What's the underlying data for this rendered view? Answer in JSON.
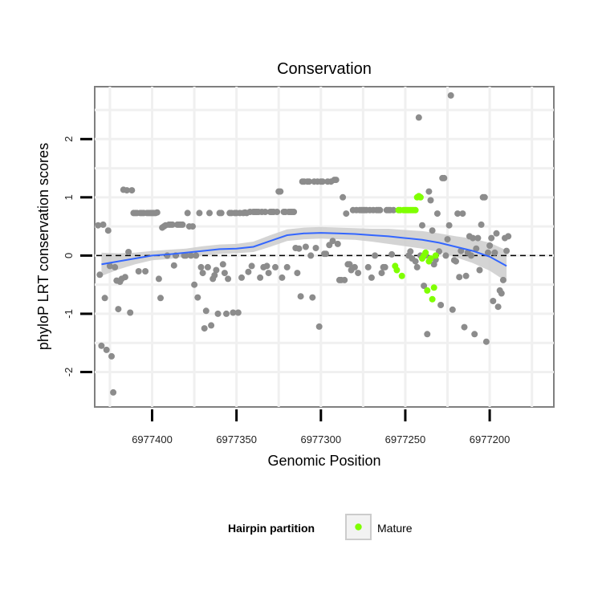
{
  "chart_data": {
    "type": "scatter",
    "title": "Conservation",
    "xlabel": "Genomic Position",
    "ylabel": "phyloP LRT conservation scores",
    "x_reversed": true,
    "xlim": [
      6977434,
      6977162
    ],
    "ylim": [
      -2.6,
      2.9
    ],
    "x_ticks": [
      6977400,
      6977350,
      6977300,
      6977250,
      6977200
    ],
    "x_tick_labels": [
      "6977400",
      "6977350",
      "6977300",
      "6977250",
      "6977200"
    ],
    "y_ticks": [
      -2,
      -1,
      0,
      1,
      2
    ],
    "y_tick_labels": [
      "-2",
      "-1",
      "0",
      "1",
      "2"
    ],
    "grid": true,
    "reference_line": {
      "y": 0,
      "style": "dashed",
      "color": "#000000"
    },
    "legend": {
      "title": "Hairpin partition",
      "placement": "bottom",
      "entries": [
        {
          "label": "Mature",
          "color": "#7fff00"
        }
      ]
    },
    "colors": {
      "other": "#8c8c8c",
      "mature": "#7fff00",
      "smooth": "#3366ff",
      "ribbon": "#cccccc",
      "panel_border": "#7f7f7f",
      "grid": "#f0f0f0"
    },
    "series": [
      {
        "color": "#8c8c8c",
        "points": [
          [
            6977432,
            0.52
          ],
          [
            6977431,
            -0.33
          ],
          [
            6977430,
            -1.55
          ],
          [
            6977429,
            0.53
          ],
          [
            6977428,
            -0.73
          ],
          [
            6977427,
            -1.62
          ],
          [
            6977426,
            0.43
          ],
          [
            6977425,
            -0.18
          ],
          [
            6977424,
            -1.73
          ],
          [
            6977423,
            -2.35
          ],
          [
            6977422,
            -0.2
          ],
          [
            6977421,
            -0.43
          ],
          [
            6977420,
            -0.92
          ],
          [
            6977419,
            -0.45
          ],
          [
            6977418,
            -0.4
          ],
          [
            6977417,
            1.13
          ],
          [
            6977416,
            -0.37
          ],
          [
            6977415,
            1.12
          ],
          [
            6977414,
            0.06
          ],
          [
            6977413,
            -0.98
          ],
          [
            6977412,
            1.12
          ],
          [
            6977411,
            0.73
          ],
          [
            6977410,
            0.73
          ],
          [
            6977409,
            0.73
          ],
          [
            6977408,
            -0.27
          ],
          [
            6977407,
            0.73
          ],
          [
            6977406,
            0.73
          ],
          [
            6977405,
            0.73
          ],
          [
            6977404,
            -0.27
          ],
          [
            6977403,
            0.73
          ],
          [
            6977402,
            0.73
          ],
          [
            6977401,
            0.73
          ],
          [
            6977400,
            0.73
          ],
          [
            6977399,
            0.73
          ],
          [
            6977398,
            0.73
          ],
          [
            6977397,
            0.74
          ],
          [
            6977396,
            -0.4
          ],
          [
            6977395,
            -0.73
          ],
          [
            6977394,
            0.48
          ],
          [
            6977393,
            0.5
          ],
          [
            6977392,
            0.52
          ],
          [
            6977391,
            0.0
          ],
          [
            6977390,
            0.53
          ],
          [
            6977389,
            0.53
          ],
          [
            6977388,
            0.53
          ],
          [
            6977387,
            -0.17
          ],
          [
            6977386,
            0.0
          ],
          [
            6977385,
            0.53
          ],
          [
            6977384,
            0.53
          ],
          [
            6977383,
            0.53
          ],
          [
            6977382,
            0.53
          ],
          [
            6977381,
            0.0
          ],
          [
            6977380,
            0.0
          ],
          [
            6977379,
            0.73
          ],
          [
            6977378,
            0.5
          ],
          [
            6977377,
            0.0
          ],
          [
            6977376,
            0.5
          ],
          [
            6977375,
            -0.5
          ],
          [
            6977374,
            0.0
          ],
          [
            6977373,
            -0.72
          ],
          [
            6977372,
            0.73
          ],
          [
            6977371,
            -0.2
          ],
          [
            6977370,
            -0.3
          ],
          [
            6977369,
            -1.25
          ],
          [
            6977368,
            -0.95
          ],
          [
            6977367,
            -0.2
          ],
          [
            6977366,
            0.73
          ],
          [
            6977365,
            -1.2
          ],
          [
            6977364,
            -0.4
          ],
          [
            6977363,
            -0.34
          ],
          [
            6977362,
            -0.25
          ],
          [
            6977361,
            -1.0
          ],
          [
            6977360,
            0.73
          ],
          [
            6977359,
            0.73
          ],
          [
            6977358,
            -0.15
          ],
          [
            6977357,
            -0.3
          ],
          [
            6977356,
            -1.0
          ],
          [
            6977355,
            -0.4
          ],
          [
            6977354,
            0.73
          ],
          [
            6977353,
            0.73
          ],
          [
            6977352,
            -0.98
          ],
          [
            6977351,
            0.73
          ],
          [
            6977350,
            0.73
          ],
          [
            6977349,
            -0.98
          ],
          [
            6977348,
            0.73
          ],
          [
            6977347,
            -0.38
          ],
          [
            6977346,
            0.73
          ],
          [
            6977345,
            0.74
          ],
          [
            6977344,
            0.73
          ],
          [
            6977343,
            -0.28
          ],
          [
            6977342,
            0.75
          ],
          [
            6977341,
            -0.18
          ],
          [
            6977340,
            0.75
          ],
          [
            6977339,
            0.75
          ],
          [
            6977338,
            0.75
          ],
          [
            6977337,
            0.75
          ],
          [
            6977336,
            -0.38
          ],
          [
            6977335,
            0.75
          ],
          [
            6977334,
            -0.2
          ],
          [
            6977333,
            0.75
          ],
          [
            6977332,
            -0.18
          ],
          [
            6977331,
            -0.3
          ],
          [
            6977330,
            0.75
          ],
          [
            6977329,
            0.75
          ],
          [
            6977328,
            0.75
          ],
          [
            6977327,
            -0.2
          ],
          [
            6977326,
            0.75
          ],
          [
            6977325,
            1.1
          ],
          [
            6977324,
            1.1
          ],
          [
            6977323,
            -0.38
          ],
          [
            6977322,
            0.75
          ],
          [
            6977321,
            0.75
          ],
          [
            6977320,
            -0.2
          ],
          [
            6977319,
            0.75
          ],
          [
            6977318,
            0.75
          ],
          [
            6977317,
            0.75
          ],
          [
            6977316,
            0.75
          ],
          [
            6977315,
            0.13
          ],
          [
            6977314,
            -0.3
          ],
          [
            6977313,
            0.12
          ],
          [
            6977312,
            -0.7
          ],
          [
            6977311,
            1.27
          ],
          [
            6977310,
            1.27
          ],
          [
            6977309,
            0.15
          ],
          [
            6977308,
            1.27
          ],
          [
            6977307,
            1.27
          ],
          [
            6977306,
            0.0
          ],
          [
            6977305,
            -0.72
          ],
          [
            6977304,
            1.27
          ],
          [
            6977303,
            0.13
          ],
          [
            6977302,
            1.27
          ],
          [
            6977301,
            -1.22
          ],
          [
            6977300,
            1.27
          ],
          [
            6977299,
            1.27
          ],
          [
            6977298,
            0.03
          ],
          [
            6977297,
            0.03
          ],
          [
            6977296,
            1.27
          ],
          [
            6977295,
            0.18
          ],
          [
            6977294,
            1.27
          ],
          [
            6977293,
            0.25
          ],
          [
            6977292,
            1.3
          ],
          [
            6977291,
            1.3
          ],
          [
            6977290,
            0.2
          ],
          [
            6977289,
            -0.42
          ],
          [
            6977288,
            -0.42
          ],
          [
            6977287,
            1.0
          ],
          [
            6977286,
            -0.42
          ],
          [
            6977285,
            0.72
          ],
          [
            6977284,
            -0.15
          ],
          [
            6977283,
            -0.15
          ],
          [
            6977282,
            -0.25
          ],
          [
            6977281,
            0.78
          ],
          [
            6977280,
            -0.2
          ],
          [
            6977279,
            0.78
          ],
          [
            6977278,
            -0.3
          ],
          [
            6977277,
            0.78
          ],
          [
            6977276,
            0.78
          ],
          [
            6977275,
            0.78
          ],
          [
            6977274,
            0.78
          ],
          [
            6977273,
            0.78
          ],
          [
            6977272,
            -0.2
          ],
          [
            6977271,
            0.78
          ],
          [
            6977270,
            -0.38
          ],
          [
            6977269,
            0.78
          ],
          [
            6977268,
            0.0
          ],
          [
            6977267,
            0.78
          ],
          [
            6977266,
            0.78
          ],
          [
            6977265,
            0.78
          ],
          [
            6977264,
            -0.3
          ],
          [
            6977263,
            -0.2
          ],
          [
            6977262,
            -0.2
          ],
          [
            6977261,
            0.78
          ],
          [
            6977260,
            0.78
          ],
          [
            6977259,
            0.78
          ],
          [
            6977258,
            0.02
          ],
          [
            6977257,
            0.78
          ],
          [
            6977248,
            0.0
          ],
          [
            6977247,
            0.07
          ],
          [
            6977246,
            -0.05
          ],
          [
            6977244,
            -0.1
          ],
          [
            6977243,
            -0.2
          ],
          [
            6977242,
            2.37
          ],
          [
            6977241,
            0.0
          ],
          [
            6977240,
            0.52
          ],
          [
            6977239,
            -0.52
          ],
          [
            6977238,
            0.0
          ],
          [
            6977237,
            -1.35
          ],
          [
            6977236,
            1.1
          ],
          [
            6977235,
            0.95
          ],
          [
            6977234,
            0.43
          ],
          [
            6977233,
            -0.15
          ],
          [
            6977232,
            -0.07
          ],
          [
            6977231,
            0.72
          ],
          [
            6977230,
            0.07
          ],
          [
            6977229,
            -0.85
          ],
          [
            6977228,
            1.33
          ],
          [
            6977227,
            1.33
          ],
          [
            6977226,
            0.0
          ],
          [
            6977225,
            0.28
          ],
          [
            6977224,
            0.52
          ],
          [
            6977223,
            2.75
          ],
          [
            6977222,
            -0.93
          ],
          [
            6977221,
            -0.08
          ],
          [
            6977220,
            -0.1
          ],
          [
            6977219,
            0.72
          ],
          [
            6977218,
            -0.37
          ],
          [
            6977217,
            0.08
          ],
          [
            6977216,
            0.72
          ],
          [
            6977215,
            -1.23
          ],
          [
            6977214,
            -0.35
          ],
          [
            6977213,
            0.05
          ],
          [
            6977212,
            0.33
          ],
          [
            6977211,
            0.0
          ],
          [
            6977210,
            0.3
          ],
          [
            6977209,
            -1.35
          ],
          [
            6977208,
            0.12
          ],
          [
            6977207,
            0.3
          ],
          [
            6977206,
            -0.25
          ],
          [
            6977205,
            0.53
          ],
          [
            6977204,
            1.0
          ],
          [
            6977203,
            1.0
          ],
          [
            6977202,
            -1.48
          ],
          [
            6977201,
            0.05
          ],
          [
            6977200,
            0.17
          ],
          [
            6977199,
            0.3
          ],
          [
            6977198,
            -0.78
          ],
          [
            6977197,
            0.05
          ],
          [
            6977196,
            0.38
          ],
          [
            6977195,
            -0.88
          ],
          [
            6977194,
            -0.6
          ],
          [
            6977193,
            -0.65
          ],
          [
            6977192,
            -0.42
          ],
          [
            6977191,
            0.3
          ],
          [
            6977190,
            0.08
          ],
          [
            6977189,
            0.33
          ]
        ]
      },
      {
        "name": "Mature",
        "color": "#7fff00",
        "points": [
          [
            6977256,
            -0.18
          ],
          [
            6977255,
            -0.25
          ],
          [
            6977254,
            0.78
          ],
          [
            6977253,
            0.78
          ],
          [
            6977252,
            -0.35
          ],
          [
            6977251,
            0.78
          ],
          [
            6977250,
            0.78
          ],
          [
            6977249,
            0.78
          ],
          [
            6977248,
            0.78
          ],
          [
            6977247,
            0.78
          ],
          [
            6977246,
            0.78
          ],
          [
            6977245,
            0.78
          ],
          [
            6977244,
            0.78
          ],
          [
            6977243,
            1.0
          ],
          [
            6977242,
            1.02
          ],
          [
            6977241,
            1.0
          ],
          [
            6977240,
            -0.05
          ],
          [
            6977239,
            0.0
          ],
          [
            6977238,
            0.05
          ],
          [
            6977237,
            -0.6
          ],
          [
            6977236,
            -0.1
          ],
          [
            6977235,
            -0.05
          ],
          [
            6977234,
            -0.75
          ],
          [
            6977233,
            -0.55
          ],
          [
            6977232,
            0.0
          ]
        ]
      }
    ],
    "smooth": {
      "color": "#3366ff",
      "ribbon_color": "#cccccc",
      "x": [
        6977430,
        6977420,
        6977410,
        6977400,
        6977390,
        6977380,
        6977370,
        6977360,
        6977350,
        6977340,
        6977330,
        6977320,
        6977310,
        6977300,
        6977290,
        6977280,
        6977270,
        6977260,
        6977250,
        6977240,
        6977230,
        6977220,
        6977210,
        6977200,
        6977190
      ],
      "y": [
        -0.15,
        -0.1,
        -0.05,
        0.0,
        0.02,
        0.05,
        0.08,
        0.11,
        0.12,
        0.15,
        0.25,
        0.35,
        0.38,
        0.39,
        0.38,
        0.37,
        0.35,
        0.33,
        0.3,
        0.27,
        0.22,
        0.15,
        0.08,
        -0.02,
        -0.18
      ],
      "lower": [
        -0.35,
        -0.24,
        -0.15,
        -0.08,
        -0.06,
        -0.02,
        0.0,
        0.03,
        0.04,
        0.06,
        0.15,
        0.25,
        0.28,
        0.29,
        0.28,
        0.27,
        0.24,
        0.2,
        0.16,
        0.12,
        0.06,
        -0.03,
        -0.13,
        -0.26,
        -0.45
      ],
      "upper": [
        0.05,
        0.04,
        0.05,
        0.08,
        0.1,
        0.12,
        0.16,
        0.19,
        0.2,
        0.24,
        0.35,
        0.45,
        0.48,
        0.49,
        0.48,
        0.47,
        0.46,
        0.46,
        0.44,
        0.42,
        0.38,
        0.33,
        0.29,
        0.22,
        0.09
      ]
    }
  }
}
